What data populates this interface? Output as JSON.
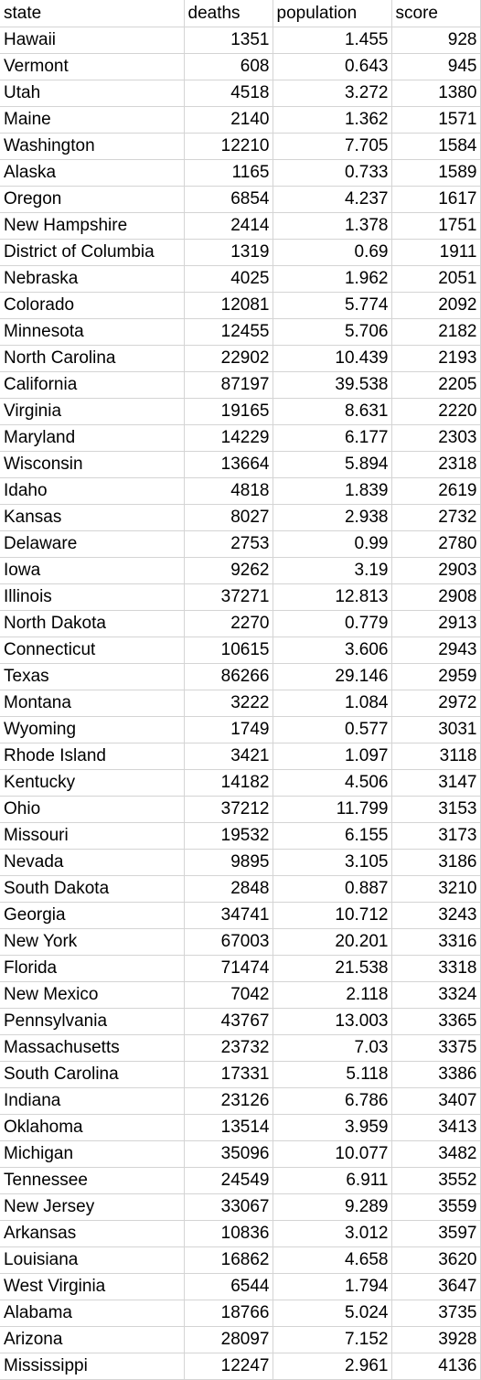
{
  "headers": {
    "state": "state",
    "deaths": "deaths",
    "population": "population",
    "score": "score"
  },
  "rows": [
    [
      "Hawaii",
      "1351",
      "1.455",
      "928"
    ],
    [
      "Vermont",
      "608",
      "0.643",
      "945"
    ],
    [
      "Utah",
      "4518",
      "3.272",
      "1380"
    ],
    [
      "Maine",
      "2140",
      "1.362",
      "1571"
    ],
    [
      "Washington",
      "12210",
      "7.705",
      "1584"
    ],
    [
      "Alaska",
      "1165",
      "0.733",
      "1589"
    ],
    [
      "Oregon",
      "6854",
      "4.237",
      "1617"
    ],
    [
      "New Hampshire",
      "2414",
      "1.378",
      "1751"
    ],
    [
      "District of Columbia",
      "1319",
      "0.69",
      "1911"
    ],
    [
      "Nebraska",
      "4025",
      "1.962",
      "2051"
    ],
    [
      "Colorado",
      "12081",
      "5.774",
      "2092"
    ],
    [
      "Minnesota",
      "12455",
      "5.706",
      "2182"
    ],
    [
      "North Carolina",
      "22902",
      "10.439",
      "2193"
    ],
    [
      "California",
      "87197",
      "39.538",
      "2205"
    ],
    [
      "Virginia",
      "19165",
      "8.631",
      "2220"
    ],
    [
      "Maryland",
      "14229",
      "6.177",
      "2303"
    ],
    [
      "Wisconsin",
      "13664",
      "5.894",
      "2318"
    ],
    [
      "Idaho",
      "4818",
      "1.839",
      "2619"
    ],
    [
      "Kansas",
      "8027",
      "2.938",
      "2732"
    ],
    [
      "Delaware",
      "2753",
      "0.99",
      "2780"
    ],
    [
      "Iowa",
      "9262",
      "3.19",
      "2903"
    ],
    [
      "Illinois",
      "37271",
      "12.813",
      "2908"
    ],
    [
      "North Dakota",
      "2270",
      "0.779",
      "2913"
    ],
    [
      "Connecticut",
      "10615",
      "3.606",
      "2943"
    ],
    [
      "Texas",
      "86266",
      "29.146",
      "2959"
    ],
    [
      "Montana",
      "3222",
      "1.084",
      "2972"
    ],
    [
      "Wyoming",
      "1749",
      "0.577",
      "3031"
    ],
    [
      "Rhode Island",
      "3421",
      "1.097",
      "3118"
    ],
    [
      "Kentucky",
      "14182",
      "4.506",
      "3147"
    ],
    [
      "Ohio",
      "37212",
      "11.799",
      "3153"
    ],
    [
      "Missouri",
      "19532",
      "6.155",
      "3173"
    ],
    [
      "Nevada",
      "9895",
      "3.105",
      "3186"
    ],
    [
      "South Dakota",
      "2848",
      "0.887",
      "3210"
    ],
    [
      "Georgia",
      "34741",
      "10.712",
      "3243"
    ],
    [
      "New York",
      "67003",
      "20.201",
      "3316"
    ],
    [
      "Florida",
      "71474",
      "21.538",
      "3318"
    ],
    [
      "New Mexico",
      "7042",
      "2.118",
      "3324"
    ],
    [
      "Pennsylvania",
      "43767",
      "13.003",
      "3365"
    ],
    [
      "Massachusetts",
      "23732",
      "7.03",
      "3375"
    ],
    [
      "South Carolina",
      "17331",
      "5.118",
      "3386"
    ],
    [
      "Indiana",
      "23126",
      "6.786",
      "3407"
    ],
    [
      "Oklahoma",
      "13514",
      "3.959",
      "3413"
    ],
    [
      "Michigan",
      "35096",
      "10.077",
      "3482"
    ],
    [
      "Tennessee",
      "24549",
      "6.911",
      "3552"
    ],
    [
      "New Jersey",
      "33067",
      "9.289",
      "3559"
    ],
    [
      "Arkansas",
      "10836",
      "3.012",
      "3597"
    ],
    [
      "Louisiana",
      "16862",
      "4.658",
      "3620"
    ],
    [
      "West Virginia",
      "6544",
      "1.794",
      "3647"
    ],
    [
      "Alabama",
      "18766",
      "5.024",
      "3735"
    ],
    [
      "Arizona",
      "28097",
      "7.152",
      "3928"
    ],
    [
      "Mississippi",
      "12247",
      "2.961",
      "4136"
    ]
  ]
}
